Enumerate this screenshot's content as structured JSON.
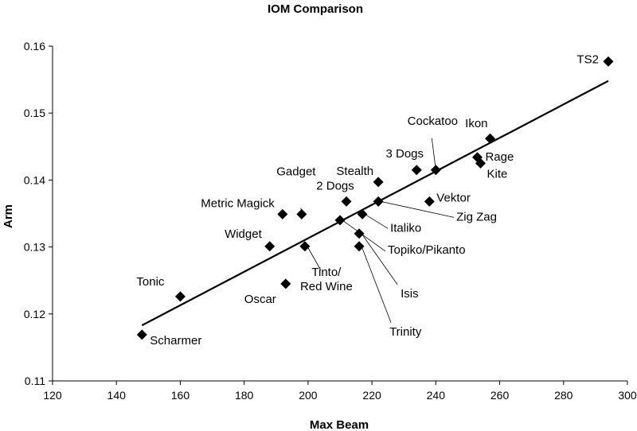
{
  "chart_data": {
    "type": "scatter",
    "title": "IOM Comparison",
    "xlabel": "Max Beam",
    "ylabel": "Arm",
    "xlim": [
      120,
      300
    ],
    "ylim": [
      0.11,
      0.16
    ],
    "x_ticks": [
      "120",
      "140",
      "160",
      "180",
      "200",
      "220",
      "240",
      "260",
      "280",
      "300"
    ],
    "y_ticks": [
      "0.11",
      "0.12",
      "0.13",
      "0.14",
      "0.15",
      "0.16"
    ],
    "grid": false,
    "legend": "none",
    "marker": "diamond",
    "trendline": {
      "type": "linear",
      "x": [
        148,
        294
      ],
      "y": [
        0.1183,
        0.1548
      ]
    },
    "points": [
      {
        "label": "TS2",
        "x": 294,
        "y": 0.1577
      },
      {
        "label": "Ikon",
        "x": 257,
        "y": 0.1462
      },
      {
        "label": "Rage",
        "x": 253,
        "y": 0.1434
      },
      {
        "label": "Kite",
        "x": 254,
        "y": 0.1425
      },
      {
        "label": "Cockatoo",
        "x": 240,
        "y": 0.1415
      },
      {
        "label": "3 Dogs",
        "x": 234,
        "y": 0.1415
      },
      {
        "label": "Stealth",
        "x": 222,
        "y": 0.1397
      },
      {
        "label": "Vektor",
        "x": 238,
        "y": 0.1368
      },
      {
        "label": "Zig Zag",
        "x": 222,
        "y": 0.1368
      },
      {
        "label": "2 Dogs",
        "x": 212,
        "y": 0.1368
      },
      {
        "label": "Gadget",
        "x": 198,
        "y": 0.1349
      },
      {
        "label": "Metric Magick",
        "x": 192,
        "y": 0.1349
      },
      {
        "label": "Italiko",
        "x": 217,
        "y": 0.1349
      },
      {
        "label": "Topiko/Pikanto",
        "x": 210,
        "y": 0.134
      },
      {
        "label": "Isis",
        "x": 216,
        "y": 0.132
      },
      {
        "label": "Trinity",
        "x": 216,
        "y": 0.1301
      },
      {
        "label": "Widget",
        "x": 188,
        "y": 0.1301
      },
      {
        "label": "Tinto/\nRed Wine",
        "x": 199,
        "y": 0.1301
      },
      {
        "label": "Oscar",
        "x": 193,
        "y": 0.1245
      },
      {
        "label": "Tonic",
        "x": 160,
        "y": 0.1226
      },
      {
        "label": "Scharmer",
        "x": 148,
        "y": 0.1169
      }
    ]
  }
}
